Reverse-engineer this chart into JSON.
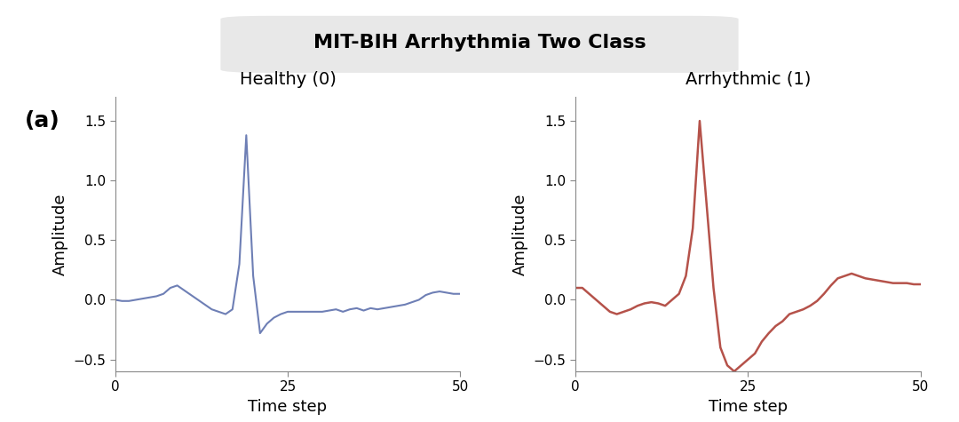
{
  "title": "MIT-BIH Arrhythmia Two Class",
  "panel_label": "(a)",
  "title_box_color": "#e8e8e8",
  "title_fontsize": 16,
  "subplot1_title": "Healthy (0)",
  "subplot2_title": "Arrhythmic (1)",
  "xlabel": "Time step",
  "ylabel": "Amplitude",
  "xlim": [
    0,
    50
  ],
  "ylim": [
    -0.6,
    1.7
  ],
  "xticks": [
    0,
    25,
    50
  ],
  "yticks": [
    -0.5,
    0.0,
    0.5,
    1.0,
    1.5
  ],
  "line_color_healthy": "#6e7fb5",
  "line_color_arrhythmic": "#b5524a",
  "background_color": "#ffffff",
  "healthy_x": [
    0,
    1,
    2,
    3,
    4,
    5,
    6,
    7,
    8,
    9,
    10,
    11,
    12,
    13,
    14,
    15,
    16,
    17,
    18,
    19,
    20,
    21,
    22,
    23,
    24,
    25,
    26,
    27,
    28,
    29,
    30,
    31,
    32,
    33,
    34,
    35,
    36,
    37,
    38,
    39,
    40,
    41,
    42,
    43,
    44,
    45,
    46,
    47,
    48,
    49,
    50
  ],
  "healthy_y": [
    0.0,
    -0.01,
    -0.01,
    0.0,
    0.01,
    0.02,
    0.03,
    0.05,
    0.1,
    0.12,
    0.08,
    0.04,
    0.0,
    -0.04,
    -0.08,
    -0.1,
    -0.12,
    -0.08,
    0.3,
    1.38,
    0.2,
    -0.28,
    -0.2,
    -0.15,
    -0.12,
    -0.1,
    -0.1,
    -0.1,
    -0.1,
    -0.1,
    -0.1,
    -0.09,
    -0.08,
    -0.1,
    -0.08,
    -0.07,
    -0.09,
    -0.07,
    -0.08,
    -0.07,
    -0.06,
    -0.05,
    -0.04,
    -0.02,
    0.0,
    0.04,
    0.06,
    0.07,
    0.06,
    0.05,
    0.05
  ],
  "arrhythmic_x": [
    0,
    1,
    2,
    3,
    4,
    5,
    6,
    7,
    8,
    9,
    10,
    11,
    12,
    13,
    14,
    15,
    16,
    17,
    18,
    19,
    20,
    21,
    22,
    23,
    24,
    25,
    26,
    27,
    28,
    29,
    30,
    31,
    32,
    33,
    34,
    35,
    36,
    37,
    38,
    39,
    40,
    41,
    42,
    43,
    44,
    45,
    46,
    47,
    48,
    49,
    50
  ],
  "arrhythmic_y": [
    0.1,
    0.1,
    0.05,
    0.0,
    -0.05,
    -0.1,
    -0.12,
    -0.1,
    -0.08,
    -0.05,
    -0.03,
    -0.02,
    -0.03,
    -0.05,
    0.0,
    0.05,
    0.2,
    0.6,
    1.5,
    0.8,
    0.1,
    -0.4,
    -0.55,
    -0.6,
    -0.55,
    -0.5,
    -0.45,
    -0.35,
    -0.28,
    -0.22,
    -0.18,
    -0.12,
    -0.1,
    -0.08,
    -0.05,
    -0.01,
    0.05,
    0.12,
    0.18,
    0.2,
    0.22,
    0.2,
    0.18,
    0.17,
    0.16,
    0.15,
    0.14,
    0.14,
    0.14,
    0.13,
    0.13
  ]
}
